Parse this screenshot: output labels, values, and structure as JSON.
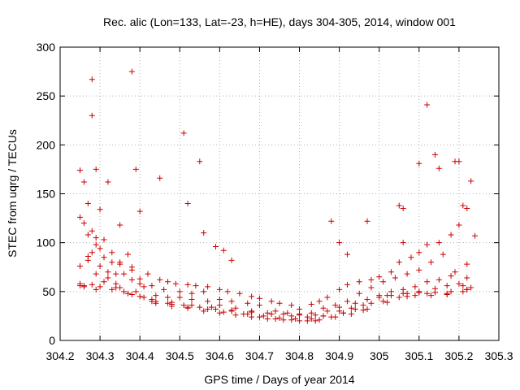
{
  "chart_data": {
    "type": "scatter",
    "title": "Rec. alic (Lon=133, Lat=-23, h=HE), days 304-305, 2014, window 001",
    "xlabel": "GPS time / Days of year 2014",
    "ylabel": "STEC from uqrg / TECUs",
    "xlim": [
      304.2,
      305.3
    ],
    "ylim": [
      0,
      300
    ],
    "xticks": [
      "304.2",
      "304.3",
      "304.4",
      "304.5",
      "304.6",
      "304.7",
      "304.8",
      "304.9",
      "305",
      "305.1",
      "305.2",
      "305.3"
    ],
    "yticks": [
      "0",
      "50",
      "100",
      "150",
      "200",
      "250",
      "300"
    ],
    "grid": true,
    "marker": "+",
    "color": "#cc0000",
    "series": [
      {
        "name": "STEC",
        "x": [
          304.25,
          304.25,
          304.26,
          304.27,
          304.28,
          304.28,
          304.29,
          304.3,
          304.32,
          304.35,
          304.38,
          304.39,
          304.4,
          304.45,
          304.51,
          304.52,
          304.55,
          304.56,
          304.59,
          304.61,
          304.63,
          304.88,
          304.9,
          304.92,
          304.97,
          305.05,
          305.06,
          305.06,
          305.1,
          305.12,
          305.14,
          305.15,
          305.19,
          305.2,
          305.21,
          305.22,
          305.23,
          305.24,
          304.25,
          304.26,
          304.27,
          304.28,
          304.29,
          304.3,
          304.31,
          304.33,
          304.35,
          304.37,
          304.38,
          304.4,
          304.42,
          304.45,
          304.47,
          304.49,
          304.52,
          304.54,
          304.57,
          304.6,
          304.62,
          304.65,
          304.68,
          304.7,
          304.73,
          304.75,
          304.78,
          304.8,
          304.83,
          304.85,
          304.87,
          304.9,
          304.92,
          304.95,
          304.98,
          305.0,
          305.03,
          305.05,
          305.08,
          305.1,
          305.12,
          305.15,
          305.18,
          305.2,
          305.22,
          304.25,
          304.27,
          304.28,
          304.3,
          304.32,
          304.34,
          304.36,
          304.38,
          304.4,
          304.43,
          304.46,
          304.5,
          304.53,
          304.56,
          304.6,
          304.63,
          304.67,
          304.7,
          304.74,
          304.77,
          304.8,
          304.83,
          304.86,
          304.89,
          304.92,
          304.95,
          304.98,
          305.01,
          305.04,
          305.07,
          305.1,
          305.13,
          305.16,
          305.19,
          305.22,
          304.25,
          304.27,
          304.29,
          304.31,
          304.33,
          304.35,
          304.38,
          304.41,
          304.44,
          304.47,
          304.5,
          304.53,
          304.57,
          304.6,
          304.64,
          304.68,
          304.72,
          304.76,
          304.8,
          304.84,
          304.87,
          304.9,
          304.94,
          304.97,
          305.0,
          305.03,
          305.06,
          305.09,
          305.12,
          305.15,
          305.18,
          305.21,
          304.26,
          304.29,
          304.32,
          304.35,
          304.39,
          304.43,
          304.47,
          304.51,
          304.55,
          304.59,
          304.63,
          304.67,
          304.71,
          304.75,
          304.79,
          304.83,
          304.86,
          304.9,
          304.93,
          304.96,
          305.0,
          305.03,
          305.07,
          305.1,
          305.14,
          305.17,
          305.2,
          305.23,
          304.28,
          304.31,
          304.34,
          304.37,
          304.41,
          304.44,
          304.48,
          304.52,
          304.56,
          304.6,
          304.64,
          304.68,
          304.72,
          304.76,
          304.8,
          304.84,
          304.88,
          304.91,
          304.94,
          304.98,
          305.02,
          305.06,
          305.1,
          305.14,
          305.18,
          305.22,
          304.3,
          304.33,
          304.36,
          304.4,
          304.44,
          304.48,
          304.52,
          304.57,
          304.61,
          304.66,
          304.7,
          304.74,
          304.78,
          304.82,
          304.85,
          304.89,
          304.93,
          304.97,
          305.01,
          305.05,
          305.09,
          305.13,
          305.17,
          305.21,
          304.26,
          304.29,
          304.34,
          304.38,
          304.43,
          304.48,
          304.53,
          304.58,
          304.63,
          304.68,
          304.73,
          304.78,
          304.82,
          304.86,
          304.91,
          304.96,
          305.02,
          305.07,
          305.12,
          305.17,
          305.22
        ],
        "y": [
          174,
          126,
          162,
          140,
          267,
          230,
          175,
          134,
          162,
          118,
          275,
          175,
          132,
          166,
          212,
          140,
          183,
          110,
          96,
          92,
          82,
          122,
          100,
          88,
          122,
          138,
          135,
          100,
          181,
          241,
          190,
          176,
          183,
          183,
          138,
          78,
          163,
          107,
          58,
          120,
          108,
          112,
          105,
          94,
          103,
          90,
          80,
          88,
          75,
          63,
          68,
          62,
          60,
          58,
          57,
          56,
          55,
          52,
          50,
          48,
          45,
          43,
          40,
          38,
          36,
          32,
          37,
          40,
          44,
          52,
          57,
          60,
          62,
          65,
          70,
          80,
          85,
          90,
          98,
          100,
          108,
          118,
          135,
          56,
          86,
          90,
          76,
          70,
          68,
          68,
          62,
          58,
          56,
          52,
          50,
          48,
          50,
          42,
          40,
          38,
          36,
          30,
          28,
          27,
          28,
          33,
          36,
          40,
          48,
          54,
          60,
          64,
          68,
          72,
          80,
          88,
          70,
          64,
          76,
          82,
          98,
          85,
          80,
          78,
          72,
          55,
          46,
          44,
          44,
          42,
          40,
          36,
          33,
          30,
          28,
          27,
          26,
          26,
          30,
          34,
          38,
          42,
          46,
          50,
          52,
          55,
          60,
          62,
          66,
          56,
          56,
          68,
          64,
          54,
          50,
          40,
          38,
          36,
          34,
          32,
          30,
          27,
          25,
          23,
          22,
          22,
          25,
          30,
          33,
          36,
          44,
          46,
          48,
          50,
          53,
          56,
          58,
          54,
          57,
          60,
          58,
          48,
          44,
          38,
          35,
          33,
          30,
          28,
          26,
          24,
          22,
          21,
          20,
          20,
          24,
          28,
          32,
          38,
          46,
          48,
          49,
          49,
          50,
          52,
          55,
          52,
          50,
          45,
          40,
          37,
          34,
          32,
          29,
          27,
          24,
          22,
          21,
          20,
          21,
          24,
          27,
          32,
          40,
          44,
          46,
          46,
          47,
          50,
          55,
          52,
          54,
          47,
          42,
          39,
          36,
          34,
          31,
          29,
          27,
          25,
          24,
          25,
          28,
          31,
          39,
          45,
          48,
          48,
          52
        ]
      }
    ]
  }
}
